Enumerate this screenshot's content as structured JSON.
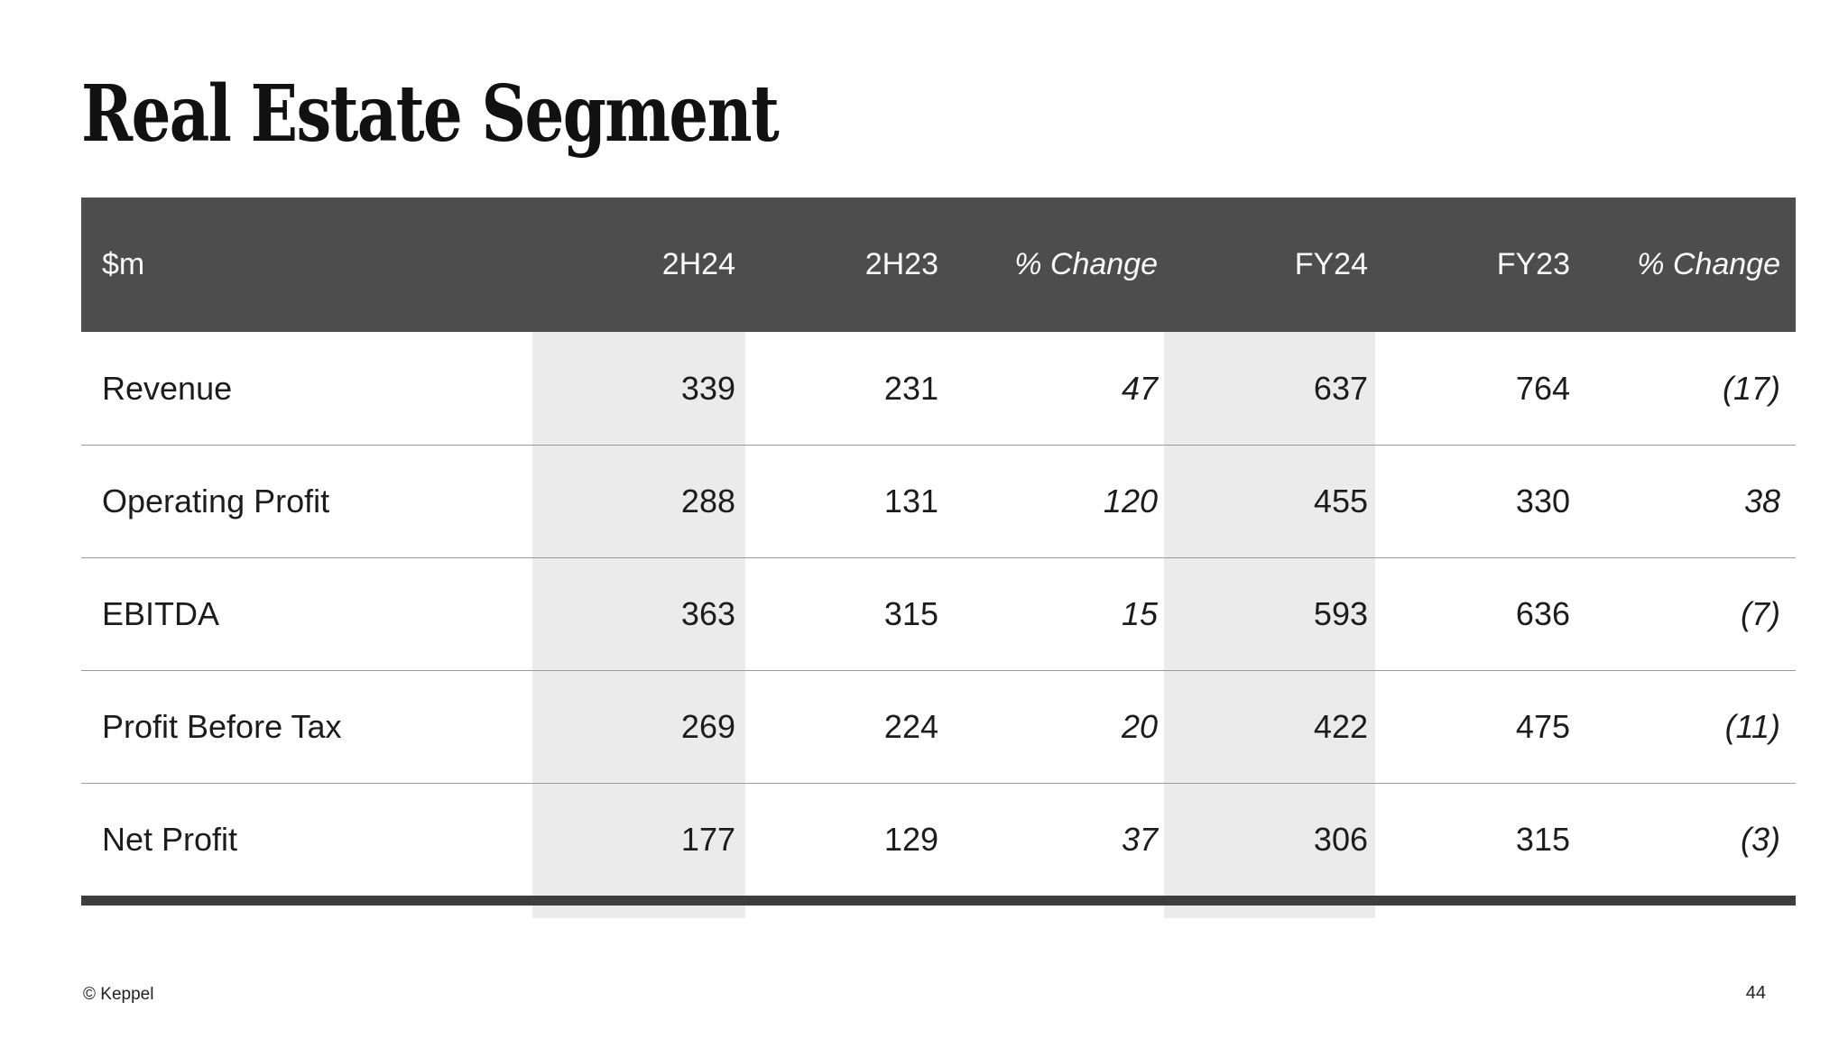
{
  "slide": {
    "title": "Real Estate Segment",
    "footer": {
      "copyright": "© Keppel",
      "page_number": "44"
    }
  },
  "table": {
    "unit_label": "$m",
    "columns": [
      "$m",
      "2H24",
      "2H23",
      "% Change",
      "FY24",
      "FY23",
      "% Change"
    ],
    "rows": [
      {
        "label": "Revenue",
        "values": [
          "339",
          "231",
          "47",
          "637",
          "764",
          "(17)"
        ]
      },
      {
        "label": "Operating Profit",
        "values": [
          "288",
          "131",
          "120",
          "455",
          "330",
          "38"
        ]
      },
      {
        "label": "EBITDA",
        "values": [
          "363",
          "315",
          "15",
          "593",
          "636",
          "(7)"
        ]
      },
      {
        "label": "Profit Before Tax",
        "values": [
          "269",
          "224",
          "20",
          "422",
          "475",
          "(11)"
        ]
      },
      {
        "label": "Net Profit",
        "values": [
          "177",
          "129",
          "37",
          "306",
          "315",
          "(3)"
        ]
      }
    ]
  },
  "colors": {
    "header_bg": "#4d4d4d",
    "highlight_band_bg": "#ebebeb",
    "bottom_rule": "#3d3d3d",
    "row_separator": "#9b9b9b",
    "header_text": "#fafafa",
    "body_text": "#1c1c1c"
  }
}
